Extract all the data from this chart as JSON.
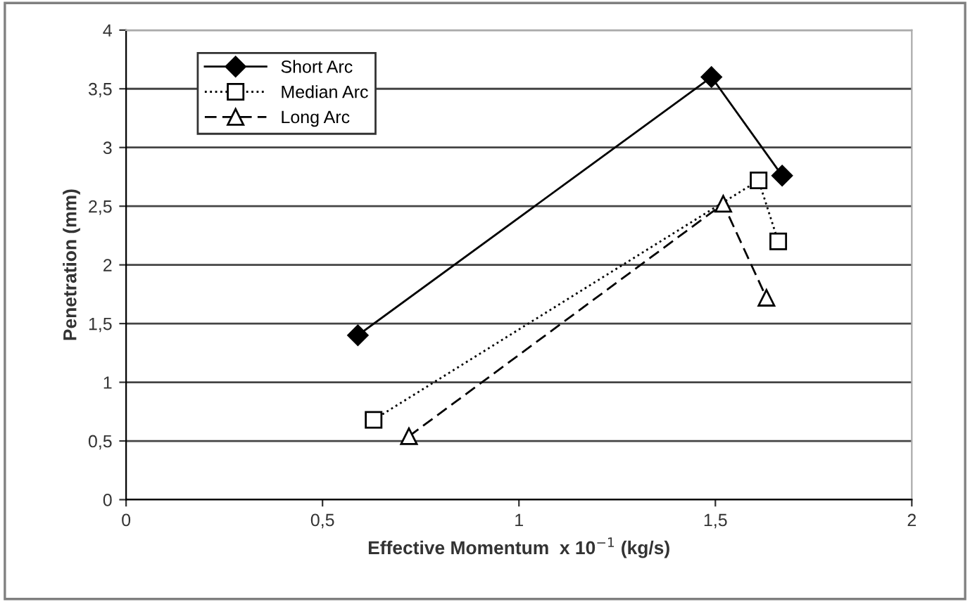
{
  "chart_data": {
    "type": "line",
    "xlabel": "Effective Momentum  x 10$^{−1}$ (kg/s)",
    "ylabel": "Penetration (mm)",
    "xlim": [
      0,
      2
    ],
    "xticks": [
      0,
      {
        "value": 0.5,
        "label": "0,5"
      },
      1,
      {
        "value": 1.5,
        "label": "1,5"
      },
      2
    ],
    "ylim": [
      0,
      4
    ],
    "yticks": [
      0,
      {
        "value": 0.5,
        "label": "0,5"
      },
      1,
      {
        "value": 1.5,
        "label": "1,5"
      },
      2,
      {
        "value": 2.5,
        "label": "2,5"
      },
      3,
      {
        "value": 3.5,
        "label": "3,5"
      },
      4
    ],
    "grid": "y",
    "legend": "top left",
    "series": [
      {
        "name": "Short Arc",
        "color": "#000000",
        "marker": "diamond",
        "line_style": "solid",
        "x": [
          0.59,
          1.49,
          1.67
        ],
        "values": [
          1.4,
          3.6,
          2.76
        ]
      },
      {
        "name": "Median Arc",
        "color": "#000000",
        "marker": "square",
        "line_style": "dotted",
        "x": [
          0.63,
          1.61,
          1.66
        ],
        "values": [
          0.68,
          2.72,
          2.2
        ]
      },
      {
        "name": "Long Arc",
        "color": "#000000",
        "marker": "triangle",
        "line_style": "dashed",
        "x": [
          0.72,
          1.52,
          1.63
        ],
        "values": [
          0.54,
          2.52,
          1.72
        ]
      }
    ]
  }
}
